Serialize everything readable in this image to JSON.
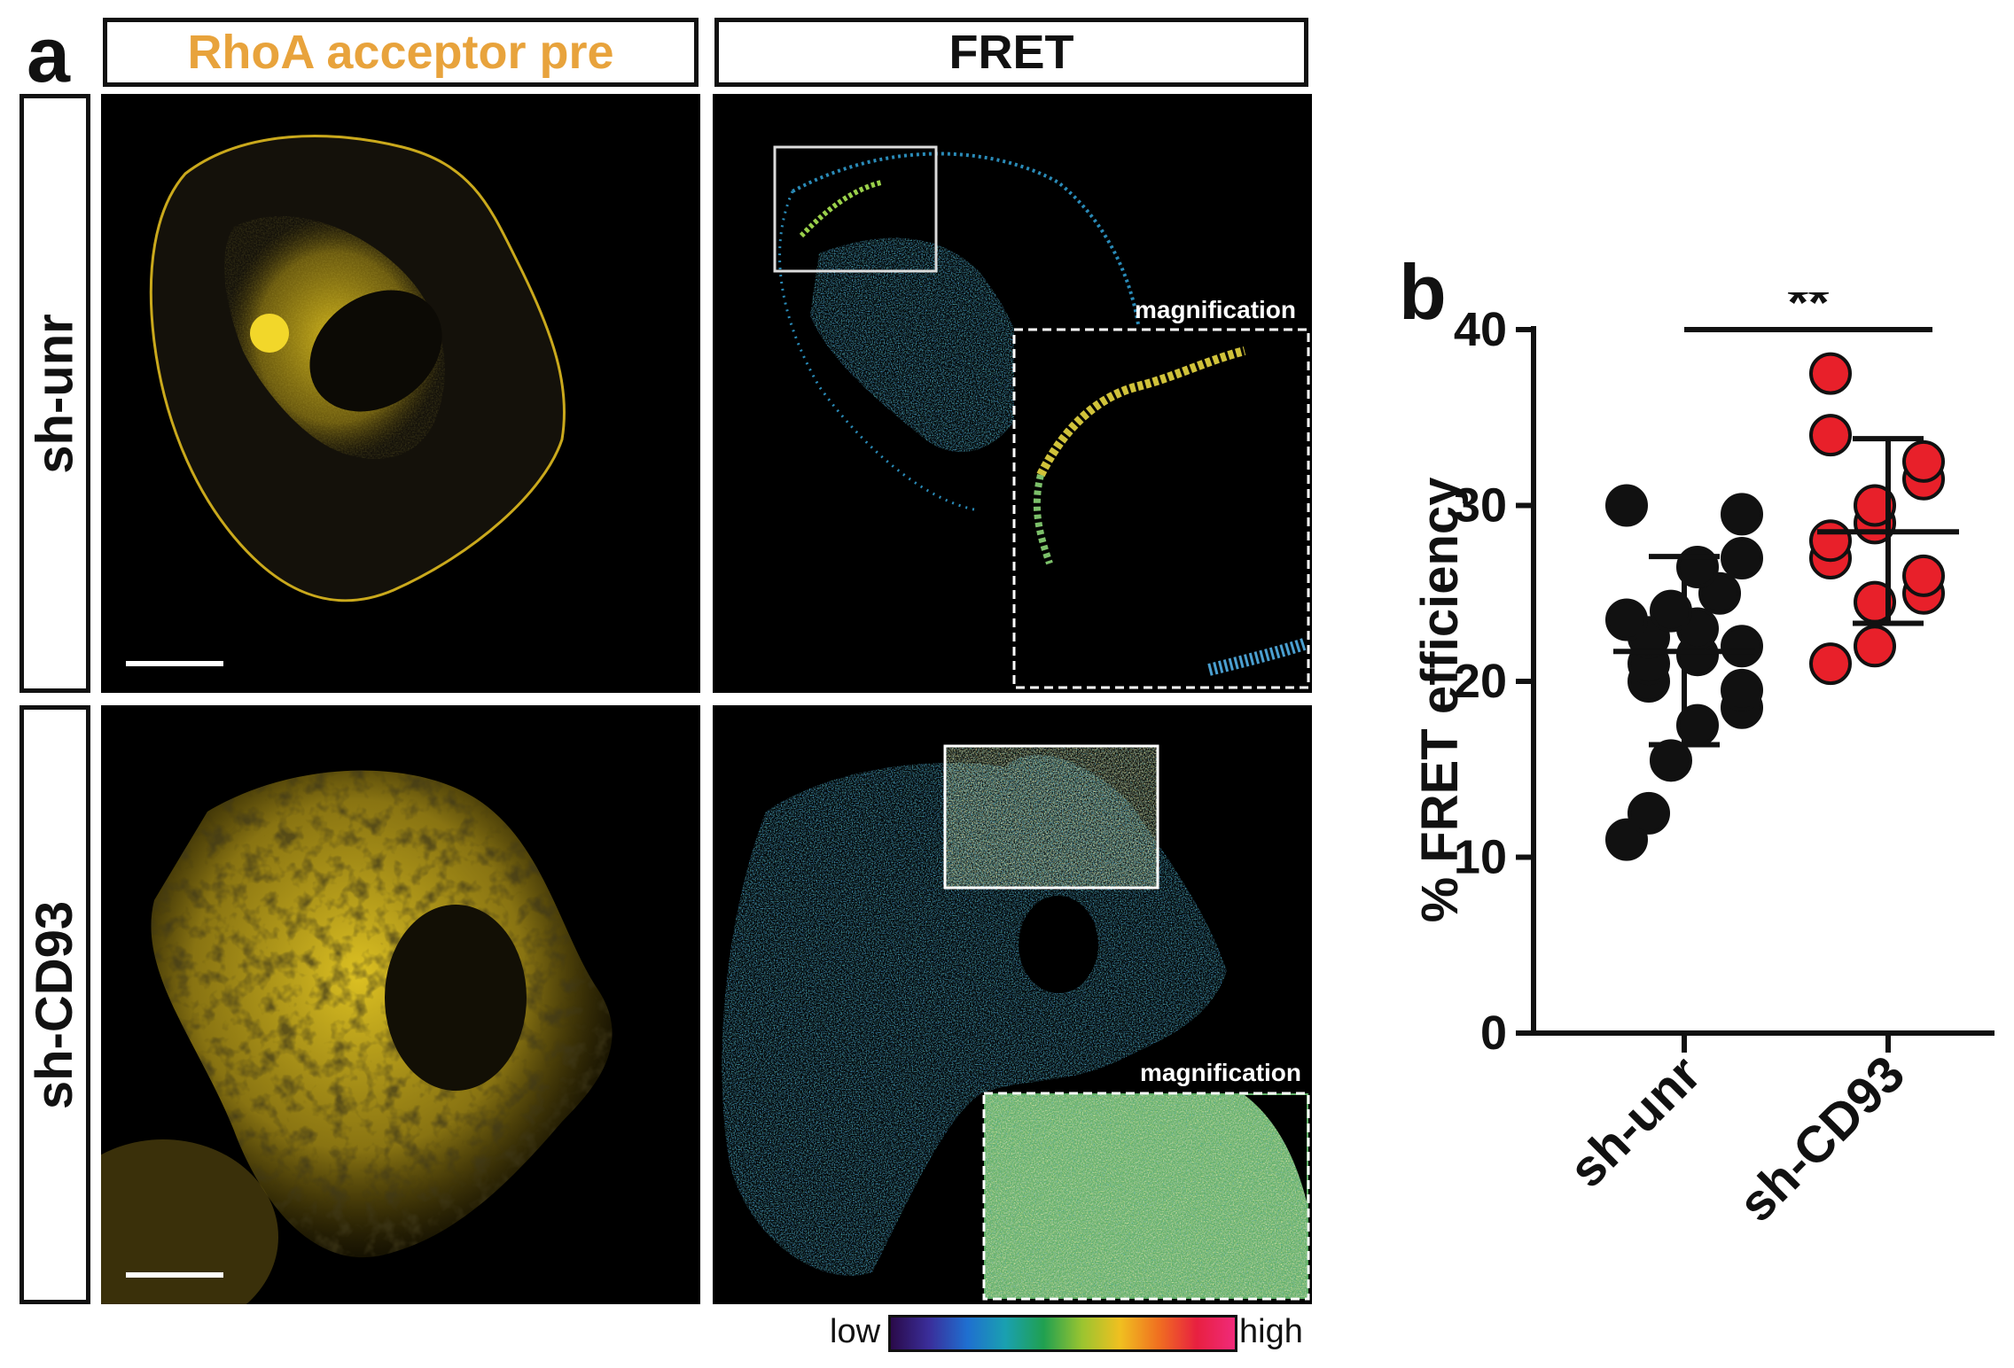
{
  "panel_a": {
    "letter": "a",
    "col_headers": [
      "RhoA acceptor pre",
      "FRET"
    ],
    "row_headers": [
      "sh-unr",
      "sh-CD93"
    ],
    "inset_label": "magnification",
    "colorbar": {
      "low": "low",
      "high": "high"
    },
    "colors": {
      "acceptor_title": "#e8a33c",
      "cell_yellow": "#e6c81f"
    }
  },
  "panel_b": {
    "letter": "b",
    "significance": "**"
  },
  "chart_data": {
    "type": "scatter",
    "title": "",
    "xlabel": "",
    "ylabel": "% FRET efficiency",
    "ylim": [
      0,
      40
    ],
    "yticks": [
      0,
      10,
      20,
      30,
      40
    ],
    "categories": [
      "sh-unr",
      "sh-CD93"
    ],
    "series": [
      {
        "category": "sh-unr",
        "color": "#111111",
        "values": [
          11,
          12.5,
          15.5,
          17.5,
          18.5,
          19.5,
          20,
          21,
          21.5,
          22,
          22.5,
          23,
          23.5,
          24,
          25,
          26.5,
          27,
          29.5,
          30
        ],
        "mean": 21.7,
        "sd_lower": 16.4,
        "sd_upper": 27.1
      },
      {
        "category": "sh-CD93",
        "color": "#e8202a",
        "values": [
          21,
          22,
          24.5,
          25,
          26,
          27,
          28,
          29,
          30,
          31.5,
          32.5,
          34,
          37.5
        ],
        "mean": 28.5,
        "sd_lower": 23.3,
        "sd_upper": 33.8
      }
    ]
  }
}
